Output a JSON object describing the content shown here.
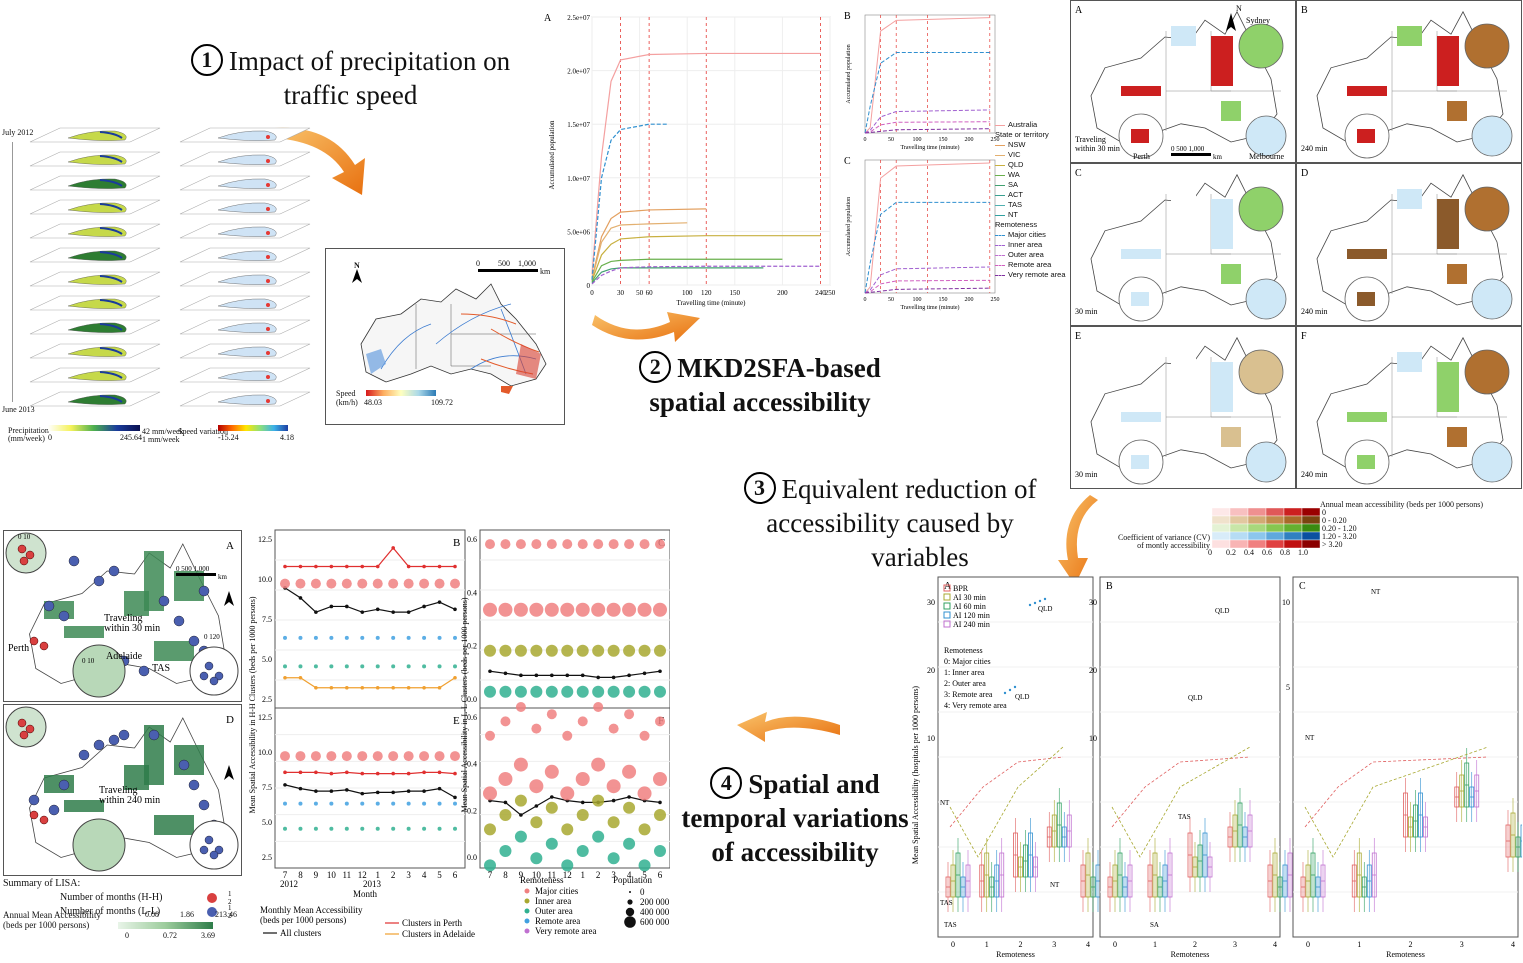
{
  "steps": {
    "s1_num": "1",
    "s1_text_a": "Impact of precipitation on",
    "s1_text_b": "traffic speed",
    "s2_num": "2",
    "s2_text_a": "MKD2SFA-based",
    "s2_text_b": "spatial accessibility",
    "s3_num": "3",
    "s3_text_a": "Equivalent reduction of",
    "s3_text_b": "accessibility caused by",
    "s3_text_c": "variables",
    "s4_num": "4",
    "s4_text_a": "Spatial and",
    "s4_text_b": "temporal variations",
    "s4_text_c": "of accessibility"
  },
  "layers": {
    "top_label": "July 2012",
    "bottom_label": "June 2013",
    "precip_title": "Precipitation\n(mm/week)",
    "precip_min": "0",
    "precip_max": "245.64",
    "mid_a": "42 mm/week",
    "mid_b": "1 mm/week",
    "speedvar_title": "Speed variation",
    "speedvar_min": "-15.24",
    "speedvar_max": "4.18"
  },
  "speedmap": {
    "north": "N",
    "scale_0": "0",
    "scale_500": "500",
    "scale_1000": "1,000",
    "scale_unit": "km",
    "legend_title": "Speed\n(km/h)",
    "legend_min": "48.03",
    "legend_max": "109.72"
  },
  "accum": {
    "panelA": "A",
    "panelB": "B",
    "panelC": "C",
    "ylabel": "Accumulated population",
    "xlabel": "Travelling time (minute)",
    "legend": {
      "australia": "Australia",
      "state_head": "State or territory",
      "states": [
        "NSW",
        "VIC",
        "QLD",
        "WA",
        "SA",
        "ACT",
        "TAS",
        "NT"
      ],
      "remote_head": "Remoteness",
      "remote": [
        "Major cities",
        "Inner area",
        "Outer area",
        "Remote area",
        "Very remote area"
      ]
    }
  },
  "chart_data": [
    {
      "type": "line",
      "title": "",
      "xlabel": "Travelling time (minute)",
      "ylabel": "Accumulated population",
      "xlim": [
        0,
        250
      ],
      "xticks": [
        "0",
        "30",
        "50",
        "60",
        "100",
        "120",
        "150",
        "200",
        "240",
        "250"
      ],
      "yticks": [
        "0",
        "5.0e+06",
        "1.0e+07",
        "1.5e+07",
        "2.0e+07",
        "2.5e+07"
      ],
      "ylim": [
        0,
        25000000
      ],
      "series": [
        {
          "name": "Australia",
          "color": "#f4a0a0",
          "x": [
            0,
            10,
            20,
            30,
            60,
            120,
            240
          ],
          "y": [
            1000000,
            12000000,
            19000000,
            21000000,
            21500000,
            21600000,
            21600000
          ]
        },
        {
          "name": "NSW",
          "color": "#e3a060",
          "x": [
            0,
            10,
            20,
            30,
            60,
            120
          ],
          "y": [
            600000,
            4500000,
            6200000,
            6800000,
            7000000,
            7100000
          ]
        },
        {
          "name": "VIC",
          "color": "#e3b070",
          "x": [
            0,
            10,
            20,
            30,
            60,
            100
          ],
          "y": [
            500000,
            4000000,
            5300000,
            5600000,
            5700000,
            5800000
          ]
        },
        {
          "name": "QLD",
          "color": "#c8b040",
          "x": [
            0,
            10,
            20,
            30,
            60,
            120,
            240
          ],
          "y": [
            400000,
            2800000,
            3800000,
            4300000,
            4500000,
            4600000,
            4600000
          ]
        },
        {
          "name": "WA",
          "color": "#6ab04c",
          "x": [
            0,
            10,
            20,
            30,
            60,
            120,
            200
          ],
          "y": [
            300000,
            1800000,
            2200000,
            2300000,
            2400000,
            2400000,
            2400000
          ]
        },
        {
          "name": "SA",
          "color": "#40a070",
          "x": [
            0,
            10,
            20,
            30,
            60,
            120,
            180
          ],
          "y": [
            200000,
            1200000,
            1500000,
            1600000,
            1600000,
            1600000,
            1600000
          ]
        },
        {
          "name": "Major cities",
          "color": "#3090d0",
          "x": [
            0,
            10,
            20,
            30,
            60,
            80
          ],
          "y": [
            500000,
            10000000,
            13500000,
            14500000,
            15000000,
            15000000
          ]
        },
        {
          "name": "Inner area",
          "color": "#a060d0",
          "x": [
            0,
            10,
            20,
            30,
            60,
            120,
            240
          ],
          "y": [
            100000,
            900000,
            1300000,
            1600000,
            1700000,
            1750000,
            1750000
          ]
        }
      ]
    }
  ],
  "maps6": {
    "panels": [
      "A",
      "B",
      "C",
      "D",
      "E",
      "F"
    ],
    "time_labels": [
      "Traveling\nwithin 30 min",
      "240 min",
      "30 min",
      "240 min",
      "30 min",
      "240 min"
    ],
    "cities": {
      "sydney": "Sydney",
      "perth": "Perth",
      "melbourne": "Melbourne"
    },
    "north": "N",
    "scale": "0  500 1,000",
    "unit": "km"
  },
  "bivariate": {
    "title": "Annual mean accessibility (beds per 1000 persons)",
    "rows": [
      "0",
      "0 - 0.20",
      "0.20 - 1.20",
      "1.20 - 3.20",
      "> 3.20"
    ],
    "cv_title": "Coefficient of variance (CV)\nof montly accessibility",
    "cv_ticks": [
      "0",
      "0.2",
      "0.4",
      "0.6",
      "0.8",
      "1.0"
    ]
  },
  "lisa": {
    "panelA": "A",
    "panelD": "D",
    "travel30": "Traveling\nwithin 30 min",
    "travel240": "Traveling\nwithin 240 min",
    "perth": "Perth",
    "adelaide": "Adelaide",
    "tas": "TAS",
    "scale": "0  500 1,000",
    "unit": "km",
    "zoom_a": "0  10",
    "zoom_b": "0  10",
    "zoom_c": "0  120",
    "summary": "Summary of LISA:",
    "hh": "Number of months (H-H)",
    "ll": "Number of months (L-L)",
    "leg1": "1",
    "leg2": "2",
    "annual": "Annual Mean Accessibility\n(beds per 1000 persons)",
    "ticks_top": [
      "0.08",
      "1.86",
      "213.46"
    ],
    "ticks_bottom": [
      "0",
      "0.72",
      "3.69"
    ]
  },
  "temporal": {
    "panels": [
      "B",
      "C",
      "E",
      "F"
    ],
    "ylabel_hh": "Mean Spatial Accessibility in H-H Clusters (beds per 1000 persons)",
    "ylabel_ll": "Mean Spatial Accessibility in L-L Clusters (beds per 1000 persons)",
    "months": [
      "7",
      "8",
      "9",
      "10",
      "11",
      "12",
      "1",
      "2",
      "3",
      "4",
      "5",
      "6"
    ],
    "year_a": "2012",
    "year_b": "2013",
    "xlabel": "Month",
    "legend_title": "Monthly Mean Accessibility\n(beds per 1000 persons)",
    "all": "All clusters",
    "perth": "Clusters in Perth",
    "adelaide": "Clusters in Adelaide",
    "remote_title": "Remoteness",
    "remote": [
      "Major cities",
      "Inner area",
      "Outer area",
      "Remote area",
      "Very remote area"
    ],
    "pop_title": "Population",
    "pop": [
      "0",
      "200 000",
      "400 000",
      "600 000"
    ],
    "yticks_hh": [
      "12.5",
      "10.0",
      "7.5",
      "5.0",
      "2.5"
    ],
    "yticks_ll": [
      "0.6",
      "0.4",
      "0.2",
      "0.0"
    ]
  },
  "boxplots": {
    "panels": [
      "A",
      "B",
      "C"
    ],
    "legend": [
      "BPR",
      "AI 30 min",
      "AI 60 min",
      "AI 120 min",
      "AI 240 min"
    ],
    "remote_head": "Remoteness",
    "remote": [
      "0: Major cities",
      "1: Inner area",
      "2: Outer area",
      "3: Remote area",
      "4: Very remote area"
    ],
    "ylabel": "Mean Spatial Accessibility (hospitals per 1000 persons)",
    "xlabel": "Remoteness",
    "xticks": [
      "0",
      "1",
      "2",
      "3",
      "4"
    ],
    "yticks_a": [
      "30",
      "20",
      "10"
    ],
    "yticks_c": [
      "10",
      "5"
    ],
    "notes": [
      "QLD",
      "QLD",
      "NT",
      "TAS",
      "TAS",
      "NT",
      "SA",
      "QLD",
      "QLD",
      "TAS",
      "NT",
      "NT"
    ]
  }
}
